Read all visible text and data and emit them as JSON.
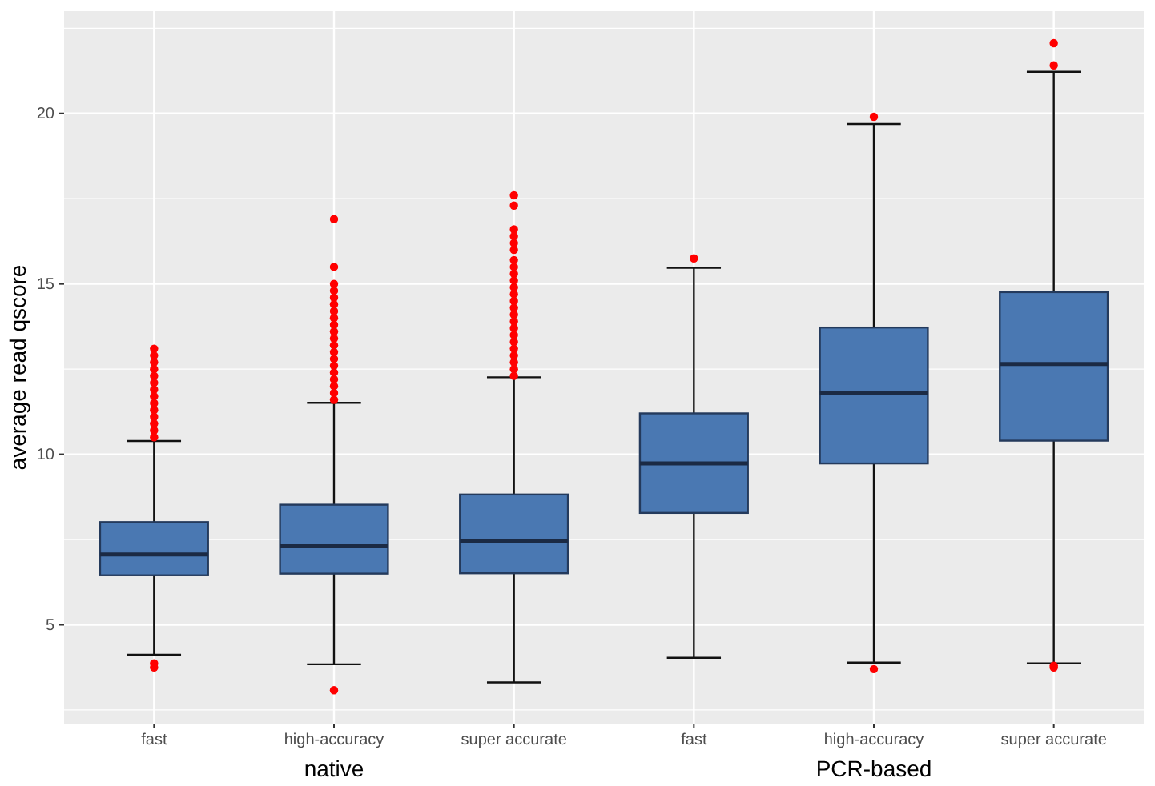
{
  "chart_data": {
    "type": "box",
    "ylabel": "average read qscore",
    "categories": [
      "fast",
      "high-accuracy",
      "super accurate",
      "fast",
      "high-accuracy",
      "super accurate"
    ],
    "annotations": [
      "native",
      "PCR-based"
    ],
    "ylim": [
      2.1,
      23.0
    ],
    "yticks": [
      5,
      10,
      15,
      20
    ],
    "grid": true,
    "series": [
      {
        "color": "#4a78b2",
        "boxes": [
          {
            "low": 4.12,
            "q1": 6.45,
            "median": 7.06,
            "q3": 8.01,
            "high": 10.39,
            "outliers": [
              10.5,
              10.7,
              10.9,
              11.1,
              11.3,
              11.5,
              11.7,
              11.9,
              12.1,
              12.3,
              12.5,
              12.7,
              12.9,
              13.1,
              3.87,
              3.75
            ]
          },
          {
            "low": 3.84,
            "q1": 6.5,
            "median": 7.3,
            "q3": 8.52,
            "high": 11.51,
            "outliers": [
              11.6,
              11.8,
              12.0,
              12.2,
              12.4,
              12.6,
              12.8,
              13.0,
              13.2,
              13.4,
              13.6,
              13.8,
              14.0,
              14.2,
              14.4,
              14.6,
              14.8,
              15.0,
              15.5,
              16.9,
              3.08
            ]
          },
          {
            "low": 3.31,
            "q1": 6.51,
            "median": 7.44,
            "q3": 8.82,
            "high": 12.26,
            "outliers": [
              12.3,
              12.5,
              12.7,
              12.9,
              13.1,
              13.3,
              13.5,
              13.7,
              13.9,
              14.1,
              14.3,
              14.5,
              14.7,
              14.9,
              15.1,
              15.3,
              15.5,
              15.7,
              16.0,
              16.2,
              16.4,
              16.6,
              17.3,
              17.6
            ]
          },
          {
            "low": 4.03,
            "q1": 8.28,
            "median": 9.73,
            "q3": 11.2,
            "high": 15.47,
            "outliers": [
              15.75
            ]
          },
          {
            "low": 3.89,
            "q1": 9.73,
            "median": 11.8,
            "q3": 13.72,
            "high": 19.69,
            "outliers": [
              19.9,
              3.7
            ]
          },
          {
            "low": 3.87,
            "q1": 10.4,
            "median": 12.65,
            "q3": 14.76,
            "high": 21.22,
            "outliers": [
              22.06,
              21.41,
              3.8,
              3.75
            ]
          }
        ]
      }
    ]
  }
}
